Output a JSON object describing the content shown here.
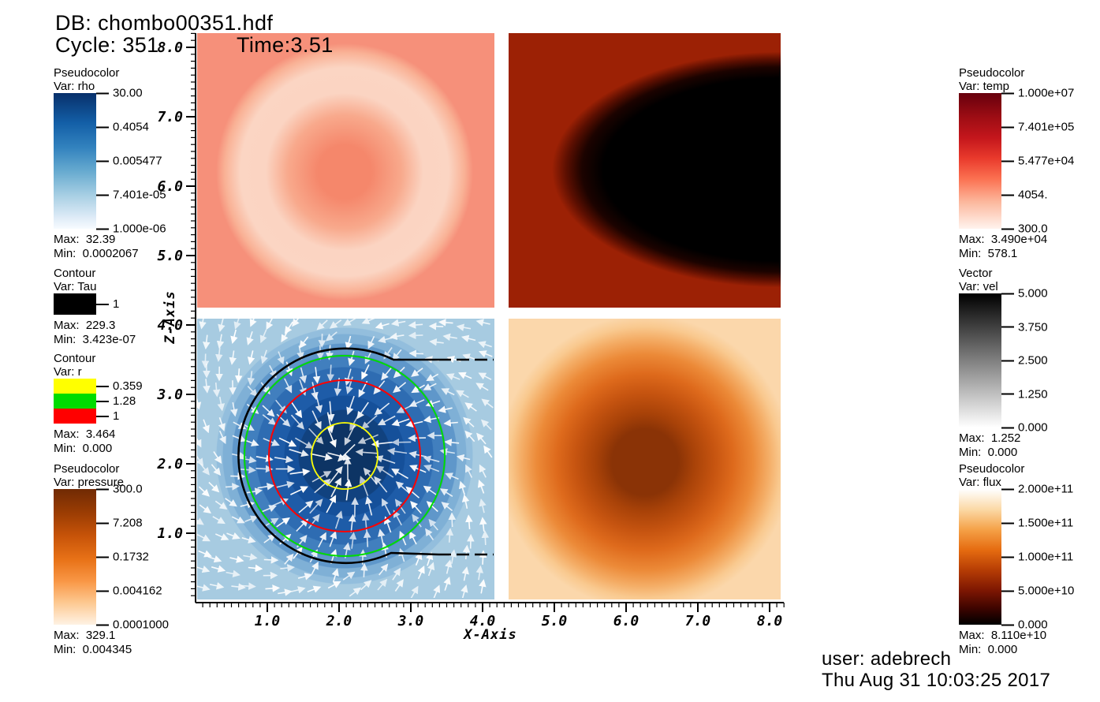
{
  "header": {
    "db": "DB: chombo00351.hdf",
    "cycle": "Cycle: 351",
    "time": "Time:3.51"
  },
  "footer": {
    "user": "user: adebrech",
    "date": "Thu Aug 31 10:03:25 2017"
  },
  "axes": {
    "x": {
      "label": "X-Axis",
      "ticks": [
        "1.0",
        "2.0",
        "3.0",
        "4.0",
        "5.0",
        "6.0",
        "7.0",
        "8.0"
      ]
    },
    "z": {
      "label": "Z-Axis",
      "ticks": [
        "1.0",
        "2.0",
        "3.0",
        "4.0",
        "5.0",
        "6.0",
        "7.0",
        "8.0"
      ]
    }
  },
  "legends": {
    "rho": {
      "type": "Pseudocolor",
      "var": "Var: rho",
      "ticks": [
        "30.00",
        "0.4054",
        "0.005477",
        "7.401e-05",
        "1.000e-06"
      ],
      "max": "Max:  32.39",
      "min": "Min:  0.0002067"
    },
    "tau": {
      "type": "Contour",
      "var": "Var: Tau",
      "levels": [
        {
          "color": "#000000",
          "label": "1"
        }
      ],
      "max": "Max:  229.3",
      "min": "Min:  3.423e-07"
    },
    "r": {
      "type": "Contour",
      "var": "Var: r",
      "levels": [
        {
          "color": "#ffff00",
          "label": "0.359"
        },
        {
          "color": "#00dc00",
          "label": "1.28"
        },
        {
          "color": "#ff0000",
          "label": "1"
        }
      ],
      "max": "Max:  3.464",
      "min": "Min:  0.000"
    },
    "pressure": {
      "type": "Pseudocolor",
      "var": "Var: pressure",
      "ticks": [
        "300.0",
        "7.208",
        "0.1732",
        "0.004162",
        "0.0001000"
      ],
      "max": "Max:  329.1",
      "min": "Min:  0.004345"
    },
    "temp": {
      "type": "Pseudocolor",
      "var": "Var: temp",
      "ticks": [
        "1.000e+07",
        "7.401e+05",
        "5.477e+04",
        "4054.",
        "300.0"
      ],
      "max": "Max:  3.490e+04",
      "min": "Min:  578.1"
    },
    "vel": {
      "type": "Vector",
      "var": "Var: vel",
      "ticks": [
        "5.000",
        "3.750",
        "2.500",
        "1.250",
        "0.000"
      ],
      "max": "Max:  1.252",
      "min": "Min:  0.000"
    },
    "flux": {
      "type": "Pseudocolor",
      "var": "Var: flux",
      "ticks": [
        "2.000e+11",
        "1.500e+11",
        "1.000e+11",
        "5.000e+10",
        "0.000"
      ],
      "max": "Max:  8.110e+10",
      "min": "Min:  0.000"
    }
  },
  "chart_data": {
    "type": "heatmap",
    "title": "DB: chombo00351.hdf",
    "cycle": 351,
    "time": 3.51,
    "layout": "2x2 quadrant mosaic sharing one coordinate frame",
    "x_axis": {
      "label": "X-Axis",
      "range": [
        0,
        8.2
      ],
      "major_ticks": [
        1,
        2,
        3,
        4,
        5,
        6,
        7,
        8
      ]
    },
    "z_axis": {
      "label": "Z-Axis",
      "range": [
        0,
        8.2
      ],
      "major_ticks": [
        1,
        2,
        3,
        4,
        5,
        6,
        7,
        8
      ]
    },
    "panels": [
      {
        "quadrant": "top-left",
        "variable": "temp",
        "colormap": "white-to-red",
        "x_extent": [
          0,
          4.15
        ],
        "z_extent": [
          4.15,
          8.2
        ],
        "feature": "pale low-value circular blob centered near (2.0, 6.2), radius ~1.7, slightly deeper salmon core, on salmon background"
      },
      {
        "quadrant": "top-right",
        "variable": "flux",
        "colormap": "white-orange-red-black",
        "x_extent": [
          4.3,
          8.2
        ],
        "z_extent": [
          4.15,
          8.2
        ],
        "feature": "black low-flux region covering right portion with rounded left edge near x=4.9, on dark red background"
      },
      {
        "quadrant": "bottom-left",
        "variable": "rho",
        "colormap": "white-to-dark-blue",
        "x_extent": [
          0,
          4.15
        ],
        "z_extent": [
          0,
          4.07
        ],
        "feature": "dark high-density stepped circular blob centered near (2.0, 2.0), radius ~1.7 with navy core radius ~0.45; white vel vectors spiral inward; black Tau=1 C-shaped contour; concentric r contours: yellow 0.359, red 1, green 1.28"
      },
      {
        "quadrant": "bottom-right",
        "variable": "pressure",
        "colormap": "white-to-dark-orange",
        "x_extent": [
          4.3,
          8.2
        ],
        "z_extent": [
          0,
          4.07
        ],
        "feature": "dark high-pressure circular blob centered near (6.2, 2.0), radius ~1.9"
      }
    ],
    "colorbar_scales": {
      "rho": {
        "ticks": [
          30.0,
          0.4054,
          0.005477,
          7.401e-05,
          1e-06
        ],
        "max": 32.39,
        "min": 0.0002067,
        "scale": "log"
      },
      "temp": {
        "ticks": [
          10000000.0,
          740100.0,
          54770.0,
          4054,
          300.0
        ],
        "max": 34900,
        "min": 578.1,
        "scale": "log"
      },
      "pressure": {
        "ticks": [
          300.0,
          7.208,
          0.1732,
          0.004162,
          0.0001
        ],
        "max": 329.1,
        "min": 0.004345,
        "scale": "log"
      },
      "vel": {
        "ticks": [
          5.0,
          3.75,
          2.5,
          1.25,
          0.0
        ],
        "max": 1.252,
        "min": 0.0,
        "scale": "linear"
      },
      "flux": {
        "ticks": [
          200000000000.0,
          150000000000.0,
          100000000000.0,
          50000000000.0,
          0.0
        ],
        "max": 81100000000.0,
        "min": 0.0,
        "scale": "linear"
      },
      "tau_contour": {
        "levels": [
          1
        ],
        "max": 229.3,
        "min": 3.423e-07
      },
      "r_contour": {
        "levels": [
          0.359,
          1.28,
          1
        ],
        "max": 3.464,
        "min": 0.0
      }
    }
  }
}
